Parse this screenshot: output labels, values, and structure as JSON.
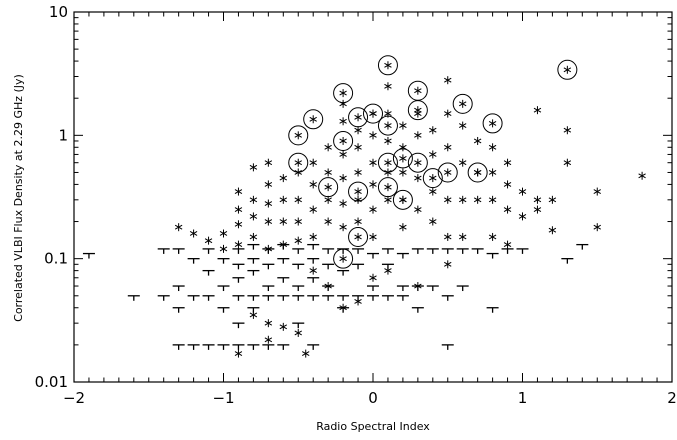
{
  "chart_data": {
    "type": "scatter",
    "title": "",
    "xlabel": "Radio Spectral Index",
    "ylabel": "Correlated VLBI Flux Density at 2.29 GHz (Jy)",
    "xlim": [
      -2,
      2
    ],
    "ylim": [
      0.01,
      10
    ],
    "yscale": "log",
    "xticks": [
      {
        "value": -2,
        "label": "−2"
      },
      {
        "value": -1,
        "label": "−1"
      },
      {
        "value": 0,
        "label": "0"
      },
      {
        "value": 1,
        "label": "1"
      },
      {
        "value": 2,
        "label": "2"
      }
    ],
    "yticks": [
      {
        "value": 0.01,
        "label": "0.01"
      },
      {
        "value": 0.1,
        "label": "0.1"
      },
      {
        "value": 1,
        "label": "1"
      },
      {
        "value": 10,
        "label": "10"
      }
    ],
    "grid": false,
    "legend": "none",
    "series": [
      {
        "marker": "asterisk",
        "points": [
          [
            -1.3,
            0.18
          ],
          [
            -1.2,
            0.16
          ],
          [
            -1.1,
            0.14
          ],
          [
            -1.0,
            0.12
          ],
          [
            -1.0,
            0.16
          ],
          [
            -0.9,
            0.35
          ],
          [
            -0.9,
            0.25
          ],
          [
            -0.9,
            0.19
          ],
          [
            -0.9,
            0.13
          ],
          [
            -0.8,
            0.55
          ],
          [
            -0.8,
            0.3
          ],
          [
            -0.8,
            0.22
          ],
          [
            -0.8,
            0.15
          ],
          [
            -0.7,
            0.6
          ],
          [
            -0.7,
            0.4
          ],
          [
            -0.7,
            0.28
          ],
          [
            -0.7,
            0.2
          ],
          [
            -0.7,
            0.12
          ],
          [
            -0.6,
            0.45
          ],
          [
            -0.6,
            0.3
          ],
          [
            -0.6,
            0.2
          ],
          [
            -0.6,
            0.13
          ],
          [
            -0.5,
            0.5
          ],
          [
            -0.5,
            0.3
          ],
          [
            -0.5,
            0.2
          ],
          [
            -0.5,
            0.14
          ],
          [
            -0.4,
            0.6
          ],
          [
            -0.4,
            0.4
          ],
          [
            -0.4,
            0.25
          ],
          [
            -0.4,
            0.15
          ],
          [
            -0.3,
            0.8
          ],
          [
            -0.3,
            0.5
          ],
          [
            -0.3,
            0.3
          ],
          [
            -0.3,
            0.2
          ],
          [
            -0.2,
            1.8
          ],
          [
            -0.2,
            1.3
          ],
          [
            -0.2,
            0.7
          ],
          [
            -0.2,
            0.45
          ],
          [
            -0.2,
            0.28
          ],
          [
            -0.2,
            0.18
          ],
          [
            -0.1,
            1.1
          ],
          [
            -0.1,
            0.8
          ],
          [
            -0.1,
            0.5
          ],
          [
            -0.1,
            0.3
          ],
          [
            -0.1,
            0.2
          ],
          [
            0.0,
            1.5
          ],
          [
            0.0,
            1.0
          ],
          [
            0.0,
            0.6
          ],
          [
            0.0,
            0.4
          ],
          [
            0.0,
            0.25
          ],
          [
            0.0,
            0.15
          ],
          [
            0.1,
            2.5
          ],
          [
            0.1,
            1.5
          ],
          [
            0.1,
            0.9
          ],
          [
            0.1,
            0.5
          ],
          [
            0.1,
            0.3
          ],
          [
            0.2,
            1.2
          ],
          [
            0.2,
            0.8
          ],
          [
            0.2,
            0.5
          ],
          [
            0.2,
            0.3
          ],
          [
            0.2,
            0.18
          ],
          [
            0.3,
            1.5
          ],
          [
            0.3,
            1.0
          ],
          [
            0.3,
            0.45
          ],
          [
            0.3,
            0.25
          ],
          [
            0.4,
            1.1
          ],
          [
            0.4,
            0.7
          ],
          [
            0.4,
            0.35
          ],
          [
            0.4,
            0.2
          ],
          [
            0.5,
            2.8
          ],
          [
            0.5,
            1.5
          ],
          [
            0.5,
            0.8
          ],
          [
            0.5,
            0.3
          ],
          [
            0.5,
            0.15
          ],
          [
            0.6,
            1.2
          ],
          [
            0.6,
            0.6
          ],
          [
            0.6,
            0.3
          ],
          [
            0.6,
            0.15
          ],
          [
            0.7,
            0.9
          ],
          [
            0.7,
            0.5
          ],
          [
            0.7,
            0.3
          ],
          [
            0.8,
            0.8
          ],
          [
            0.8,
            0.5
          ],
          [
            0.8,
            0.3
          ],
          [
            0.8,
            0.15
          ],
          [
            0.9,
            0.6
          ],
          [
            0.9,
            0.4
          ],
          [
            0.9,
            0.25
          ],
          [
            0.9,
            0.13
          ],
          [
            1.0,
            0.35
          ],
          [
            1.0,
            0.22
          ],
          [
            1.1,
            1.6
          ],
          [
            1.1,
            0.3
          ],
          [
            1.1,
            0.25
          ],
          [
            1.2,
            0.3
          ],
          [
            1.2,
            0.17
          ],
          [
            1.3,
            1.1
          ],
          [
            1.3,
            0.6
          ],
          [
            1.5,
            0.35
          ],
          [
            1.5,
            0.18
          ],
          [
            1.8,
            0.47
          ],
          [
            -0.8,
            0.035
          ],
          [
            -0.7,
            0.03
          ],
          [
            -0.6,
            0.028
          ],
          [
            -0.7,
            0.022
          ],
          [
            -0.9,
            0.017
          ],
          [
            -0.5,
            0.025
          ],
          [
            -0.2,
            0.04
          ],
          [
            -0.1,
            0.045
          ],
          [
            -0.45,
            0.017
          ],
          [
            -0.3,
            0.06
          ],
          [
            -0.4,
            0.08
          ],
          [
            0.0,
            0.07
          ],
          [
            0.1,
            0.08
          ],
          [
            0.3,
            0.06
          ],
          [
            0.5,
            0.09
          ]
        ]
      },
      {
        "marker": "upper-limit",
        "points": [
          [
            -1.9,
            0.11
          ],
          [
            -1.6,
            0.05
          ],
          [
            -1.4,
            0.05
          ],
          [
            -1.4,
            0.12
          ],
          [
            -1.3,
            0.06
          ],
          [
            -1.3,
            0.04
          ],
          [
            -1.3,
            0.02
          ],
          [
            -1.3,
            0.12
          ],
          [
            -1.2,
            0.1
          ],
          [
            -1.2,
            0.05
          ],
          [
            -1.2,
            0.02
          ],
          [
            -1.1,
            0.12
          ],
          [
            -1.1,
            0.08
          ],
          [
            -1.1,
            0.05
          ],
          [
            -1.1,
            0.02
          ],
          [
            -1.0,
            0.1
          ],
          [
            -1.0,
            0.06
          ],
          [
            -1.0,
            0.04
          ],
          [
            -1.0,
            0.02
          ],
          [
            -0.9,
            0.12
          ],
          [
            -0.9,
            0.09
          ],
          [
            -0.9,
            0.07
          ],
          [
            -0.9,
            0.05
          ],
          [
            -0.9,
            0.03
          ],
          [
            -0.9,
            0.02
          ],
          [
            -0.8,
            0.13
          ],
          [
            -0.8,
            0.1
          ],
          [
            -0.8,
            0.08
          ],
          [
            -0.8,
            0.05
          ],
          [
            -0.8,
            0.04
          ],
          [
            -0.8,
            0.02
          ],
          [
            -0.7,
            0.12
          ],
          [
            -0.7,
            0.09
          ],
          [
            -0.7,
            0.06
          ],
          [
            -0.7,
            0.05
          ],
          [
            -0.7,
            0.02
          ],
          [
            -0.6,
            0.13
          ],
          [
            -0.6,
            0.1
          ],
          [
            -0.6,
            0.07
          ],
          [
            -0.6,
            0.05
          ],
          [
            -0.6,
            0.02
          ],
          [
            -0.5,
            0.12
          ],
          [
            -0.5,
            0.09
          ],
          [
            -0.5,
            0.06
          ],
          [
            -0.5,
            0.05
          ],
          [
            -0.5,
            0.03
          ],
          [
            -0.4,
            0.13
          ],
          [
            -0.4,
            0.1
          ],
          [
            -0.4,
            0.07
          ],
          [
            -0.4,
            0.05
          ],
          [
            -0.4,
            0.02
          ],
          [
            -0.3,
            0.12
          ],
          [
            -0.3,
            0.09
          ],
          [
            -0.3,
            0.06
          ],
          [
            -0.3,
            0.05
          ],
          [
            -0.2,
            0.12
          ],
          [
            -0.2,
            0.08
          ],
          [
            -0.2,
            0.05
          ],
          [
            -0.2,
            0.04
          ],
          [
            -0.1,
            0.12
          ],
          [
            -0.1,
            0.09
          ],
          [
            -0.1,
            0.05
          ],
          [
            0.0,
            0.11
          ],
          [
            0.0,
            0.06
          ],
          [
            0.0,
            0.05
          ],
          [
            0.1,
            0.12
          ],
          [
            0.1,
            0.09
          ],
          [
            0.1,
            0.05
          ],
          [
            0.2,
            0.11
          ],
          [
            0.2,
            0.06
          ],
          [
            0.2,
            0.05
          ],
          [
            0.3,
            0.12
          ],
          [
            0.3,
            0.06
          ],
          [
            0.3,
            0.04
          ],
          [
            0.4,
            0.12
          ],
          [
            0.4,
            0.06
          ],
          [
            0.5,
            0.12
          ],
          [
            0.5,
            0.05
          ],
          [
            0.5,
            0.02
          ],
          [
            0.6,
            0.12
          ],
          [
            0.6,
            0.06
          ],
          [
            0.7,
            0.12
          ],
          [
            0.8,
            0.11
          ],
          [
            0.8,
            0.04
          ],
          [
            0.9,
            0.12
          ],
          [
            1.0,
            0.12
          ],
          [
            1.3,
            0.1
          ],
          [
            1.4,
            0.13
          ]
        ]
      },
      {
        "marker": "circled-asterisk",
        "points": [
          [
            -0.5,
            0.6
          ],
          [
            -0.5,
            1.0
          ],
          [
            -0.4,
            1.35
          ],
          [
            -0.3,
            0.38
          ],
          [
            -0.2,
            0.9
          ],
          [
            -0.2,
            2.2
          ],
          [
            -0.2,
            0.1
          ],
          [
            -0.1,
            1.4
          ],
          [
            -0.1,
            0.35
          ],
          [
            -0.1,
            0.15
          ],
          [
            0.0,
            1.5
          ],
          [
            0.1,
            3.7
          ],
          [
            0.1,
            1.2
          ],
          [
            0.1,
            0.6
          ],
          [
            0.1,
            0.38
          ],
          [
            0.2,
            0.65
          ],
          [
            0.2,
            0.3
          ],
          [
            0.3,
            2.3
          ],
          [
            0.3,
            1.6
          ],
          [
            0.3,
            0.6
          ],
          [
            0.4,
            0.45
          ],
          [
            0.5,
            0.5
          ],
          [
            0.6,
            1.8
          ],
          [
            0.7,
            0.5
          ],
          [
            0.8,
            1.25
          ],
          [
            1.3,
            3.4
          ]
        ]
      }
    ]
  }
}
